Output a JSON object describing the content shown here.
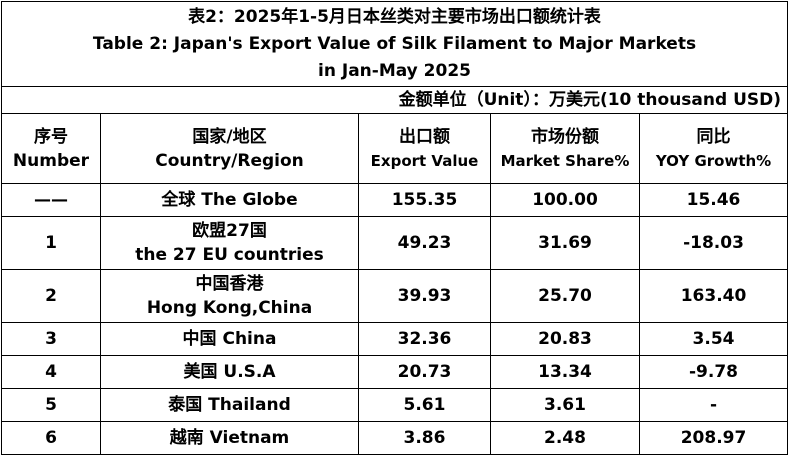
{
  "title": {
    "zh": "表2：2025年1-5月日本丝类对主要市场出口额统计表",
    "en": [
      "Table 2: Japan's Export Value of Silk Filament to Major Markets",
      "in Jan-May 2025"
    ]
  },
  "unit": "金额单位（Unit）：万美元(10 thousand USD)",
  "table": {
    "header": [
      [
        "序号",
        "Number"
      ],
      [
        "国家/地区",
        "Country/Region"
      ],
      [
        "出口额",
        "Export Value"
      ],
      [
        "市场份额",
        "Market Share%"
      ],
      [
        "同比",
        "YOY Growth%"
      ]
    ],
    "rows": [
      [
        "——",
        [
          "全球  The Globe"
        ],
        "155.35",
        "100.00",
        "15.46"
      ],
      [
        "1",
        [
          "欧盟27国",
          "the 27 EU countries"
        ],
        "49.23",
        "31.69",
        "-18.03"
      ],
      [
        "2",
        [
          "中国香港",
          "Hong Kong,China"
        ],
        "39.93",
        "25.70",
        "163.40"
      ],
      [
        "3",
        [
          "中国 China"
        ],
        "32.36",
        "20.83",
        "3.54"
      ],
      [
        "4",
        [
          "美国 U.S.A"
        ],
        "20.73",
        "13.34",
        "-9.78"
      ],
      [
        "5",
        [
          "泰国 Thailand"
        ],
        "5.61",
        "3.61",
        "-"
      ],
      [
        "6",
        [
          "越南 Vietnam"
        ],
        "3.86",
        "2.48",
        "208.97"
      ]
    ]
  }
}
